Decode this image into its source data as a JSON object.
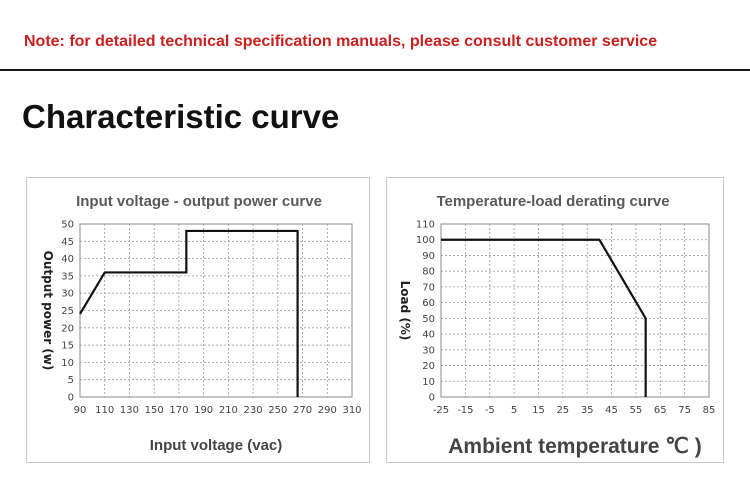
{
  "header": {
    "note": "Note: for detailed technical specification manuals, please consult customer service",
    "heading": "Characteristic curve"
  },
  "colors": {
    "note": "#cc1f1f",
    "curve": "#111111",
    "grid": "#9a9a9a"
  },
  "chart_data": [
    {
      "type": "line",
      "title": "Input voltage - output power curve",
      "xlabel": "Input voltage (vac)",
      "ylabel": "Output power (w)",
      "xlim": [
        90,
        310
      ],
      "ylim": [
        0,
        50
      ],
      "xticks": [
        90,
        110,
        130,
        150,
        170,
        190,
        210,
        230,
        250,
        270,
        290,
        310
      ],
      "yticks": [
        0,
        5,
        10,
        15,
        20,
        25,
        30,
        35,
        40,
        45,
        50
      ],
      "grid": true,
      "series": [
        {
          "x": [
            90,
            110,
            176,
            176,
            266,
            266
          ],
          "y": [
            24,
            36,
            36,
            48,
            48,
            0
          ]
        }
      ]
    },
    {
      "type": "line",
      "title": "Temperature-load derating curve",
      "xlabel": "Ambient temperature ℃ )",
      "ylabel": "Load (%)",
      "xlim": [
        -25,
        85
      ],
      "ylim": [
        0,
        110
      ],
      "xticks": [
        -25,
        -15,
        -5,
        5,
        15,
        25,
        35,
        45,
        55,
        65,
        75,
        85
      ],
      "yticks": [
        0,
        10,
        20,
        30,
        40,
        50,
        60,
        70,
        80,
        90,
        100,
        110
      ],
      "grid": true,
      "series": [
        {
          "x": [
            -25,
            40,
            59,
            59
          ],
          "y": [
            100,
            100,
            50,
            0
          ]
        }
      ]
    }
  ]
}
